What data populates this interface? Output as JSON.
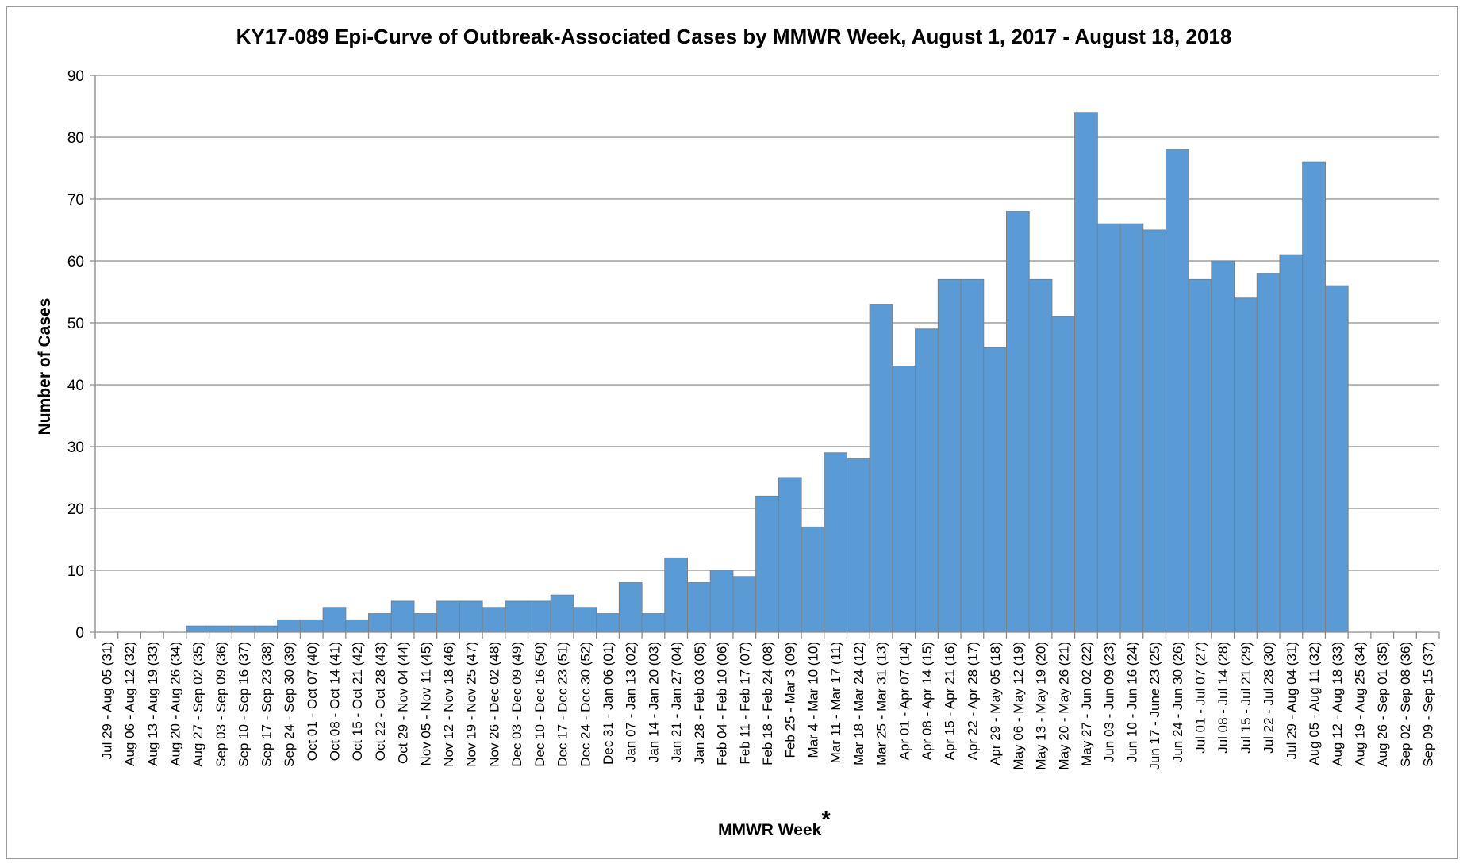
{
  "chart_data": {
    "type": "bar",
    "title": "KY17-089 Epi-Curve of Outbreak-Associated Cases by MMWR Week, August 1, 2017 - August 18, 2018",
    "xlabel": "MMWR Week",
    "xlabel_marker": "*",
    "ylabel": "Number of Cases",
    "ylim": [
      0,
      90
    ],
    "yticks": [
      0,
      10,
      20,
      30,
      40,
      50,
      60,
      70,
      80,
      90
    ],
    "grid": "horizontal",
    "legend": "none",
    "bar_color": "#5b9bd5",
    "bar_edge_color": "#7f7f7f",
    "categories": [
      "Jul 29 - Aug 05 (31)",
      "Aug 06 - Aug 12 (32)",
      "Aug 13 - Aug 19 (33)",
      "Aug 20 - Aug 26 (34)",
      "Aug 27 - Sep 02 (35)",
      "Sep 03 - Sep 09 (36)",
      "Sep 10 - Sep 16 (37)",
      "Sep 17 - Sep 23 (38)",
      "Sep 24 - Sep 30 (39)",
      "Oct 01 - Oct 07 (40)",
      "Oct 08 - Oct 14 (41)",
      "Oct 15 - Oct 21 (42)",
      "Oct 22 - Oct 28 (43)",
      "Oct 29 - Nov 04 (44)",
      "Nov 05 - Nov 11 (45)",
      "Nov 12 - Nov 18 (46)",
      "Nov 19 - Nov 25 (47)",
      "Nov 26 - Dec 02 (48)",
      "Dec 03 - Dec 09 (49)",
      "Dec 10 - Dec 16 (50)",
      "Dec 17 - Dec 23 (51)",
      "Dec 24 - Dec 30 (52)",
      "Dec 31 - Jan 06 (01)",
      "Jan 07 - Jan 13 (02)",
      "Jan 14 - Jan 20 (03)",
      "Jan 21 - Jan 27 (04)",
      "Jan 28 - Feb 03 (05)",
      "Feb 04 - Feb 10 (06)",
      "Feb 11 - Feb 17 (07)",
      "Feb 18 - Feb 24 (08)",
      "Feb 25 - Mar 3 (09)",
      "Mar 4 - Mar 10 (10)",
      "Mar 11 - Mar 17 (11)",
      "Mar 18 - Mar 24 (12)",
      "Mar 25 - Mar 31 (13)",
      "Apr 01 - Apr 07 (14)",
      "Apr 08 - Apr 14 (15)",
      "Apr 15 - Apr 21 (16)",
      "Apr 22 - Apr 28 (17)",
      "Apr 29 - May 05 (18)",
      "May 06 - May 12 (19)",
      "May 13 - May 19 (20)",
      "May 20 - May 26 (21)",
      "May 27 - Jun 02 (22)",
      "Jun 03 - Jun 09 (23)",
      "Jun 10 - Jun 16 (24)",
      "Jun 17 - June 23 (25)",
      "Jun 24 - Jun 30 (26)",
      "Jul 01 - Jul 07 (27)",
      "Jul 08 - Jul 14 (28)",
      "Jul 15 - Jul 21 (29)",
      "Jul 22 - Jul 28 (30)",
      "Jul 29 - Aug 04 (31)",
      "Aug 05 - Aug 11 (32)",
      "Aug 12 - Aug 18 (33)",
      "Aug 19 - Aug 25 (34)",
      "Aug 26 - Sep 01 (35)",
      "Sep 02 - Sep 08 (36)",
      "Sep 09 - Sep 15 (37)"
    ],
    "values": [
      0,
      0,
      0,
      0,
      1,
      1,
      1,
      1,
      2,
      2,
      4,
      2,
      3,
      5,
      3,
      5,
      5,
      4,
      5,
      5,
      6,
      4,
      3,
      8,
      3,
      12,
      8,
      10,
      9,
      22,
      25,
      17,
      29,
      28,
      53,
      43,
      49,
      57,
      57,
      46,
      68,
      57,
      51,
      84,
      66,
      66,
      65,
      78,
      57,
      60,
      54,
      58,
      61,
      76,
      56,
      0,
      0,
      0,
      0
    ]
  }
}
